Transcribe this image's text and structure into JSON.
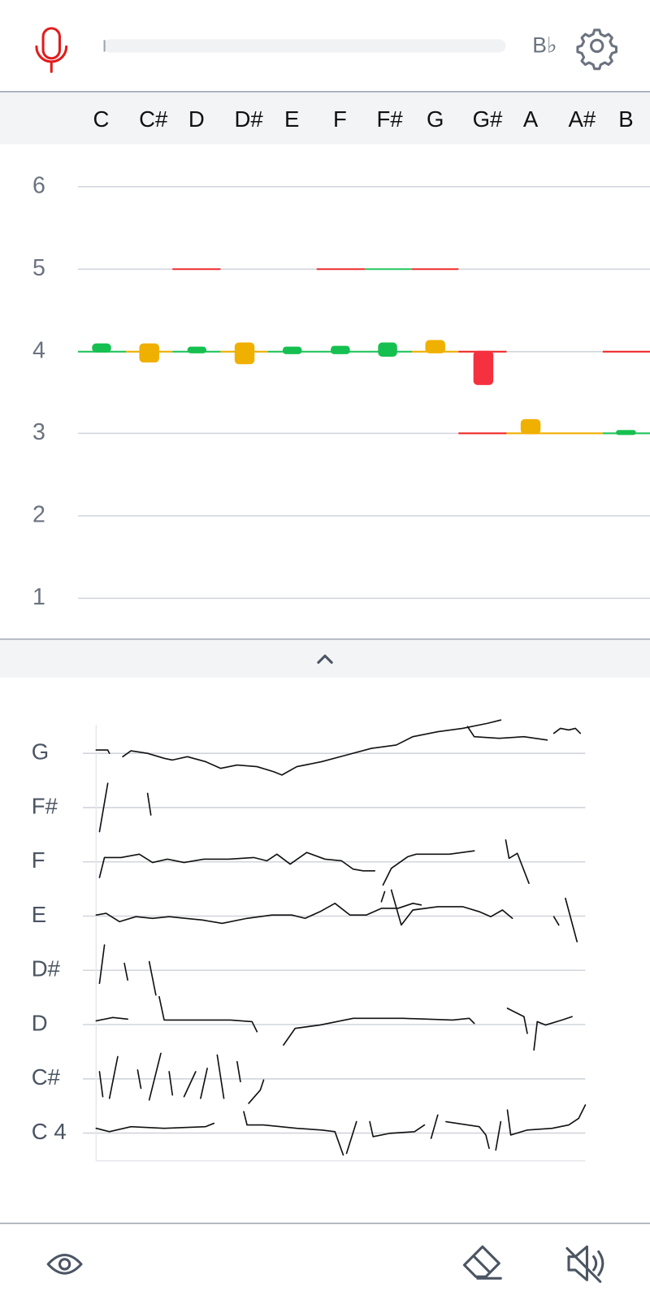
{
  "header": {
    "key_label": "B♭"
  },
  "notes": [
    "C",
    "C#",
    "D",
    "D#",
    "E",
    "F",
    "F#",
    "G",
    "G#",
    "A",
    "A#",
    "B"
  ],
  "octaves": [
    6,
    5,
    4,
    3,
    2,
    1
  ],
  "history_labels": [
    "G",
    "F#",
    "F",
    "E",
    "D#",
    "D",
    "C#",
    "C 4"
  ]
}
